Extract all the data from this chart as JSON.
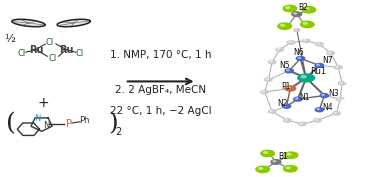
{
  "title": "",
  "background_color": "#ffffff",
  "arrow_text_line1": "1. NMP, 170 °C, 1 h",
  "arrow_text_line2": "2. 2 AgBF₄, MeCN",
  "arrow_text_line3": "22 °C, 1 h, −2 AgCl",
  "plus_sign": "+",
  "subscript_half": "½",
  "subscript_2": "2",
  "fig_width": 3.78,
  "fig_height": 1.77,
  "dpi": 100,
  "p_color": "#cc6633",
  "ru1_color": "#00aa88",
  "n_color": "#4466cc",
  "text_color": "#222222",
  "arrow_color": "#222222",
  "font_size_conditions": 7.5,
  "font_size_half": 8,
  "ligand_n_color": "#3399cc"
}
